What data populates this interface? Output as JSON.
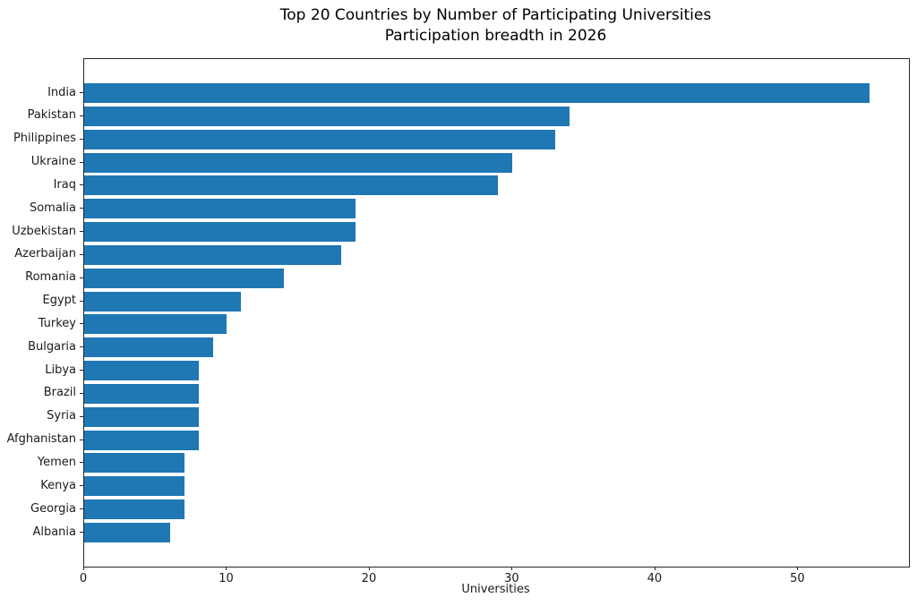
{
  "title_line1": "Top 20 Countries by Number of Participating Universities",
  "title_line2": "Participation breadth in 2026",
  "chart_data": {
    "type": "bar",
    "orientation": "horizontal",
    "title": "Top 20 Countries by Number of Participating Universities",
    "subtitle": "Participation breadth in 2026",
    "xlabel": "Universities",
    "ylabel": "",
    "categories": [
      "India",
      "Pakistan",
      "Philippines",
      "Ukraine",
      "Iraq",
      "Somalia",
      "Uzbekistan",
      "Azerbaijan",
      "Romania",
      "Egypt",
      "Turkey",
      "Bulgaria",
      "Libya",
      "Brazil",
      "Syria",
      "Afghanistan",
      "Yemen",
      "Kenya",
      "Georgia",
      "Albania"
    ],
    "values": [
      55,
      34,
      33,
      30,
      29,
      19,
      19,
      18,
      14,
      11,
      10,
      9,
      8,
      8,
      8,
      8,
      7,
      7,
      7,
      6
    ],
    "xlim": [
      0,
      57.75
    ],
    "xticks": [
      0,
      10,
      20,
      30,
      40,
      50
    ],
    "bar_color": "#1f77b4",
    "grid": false,
    "legend": null
  }
}
